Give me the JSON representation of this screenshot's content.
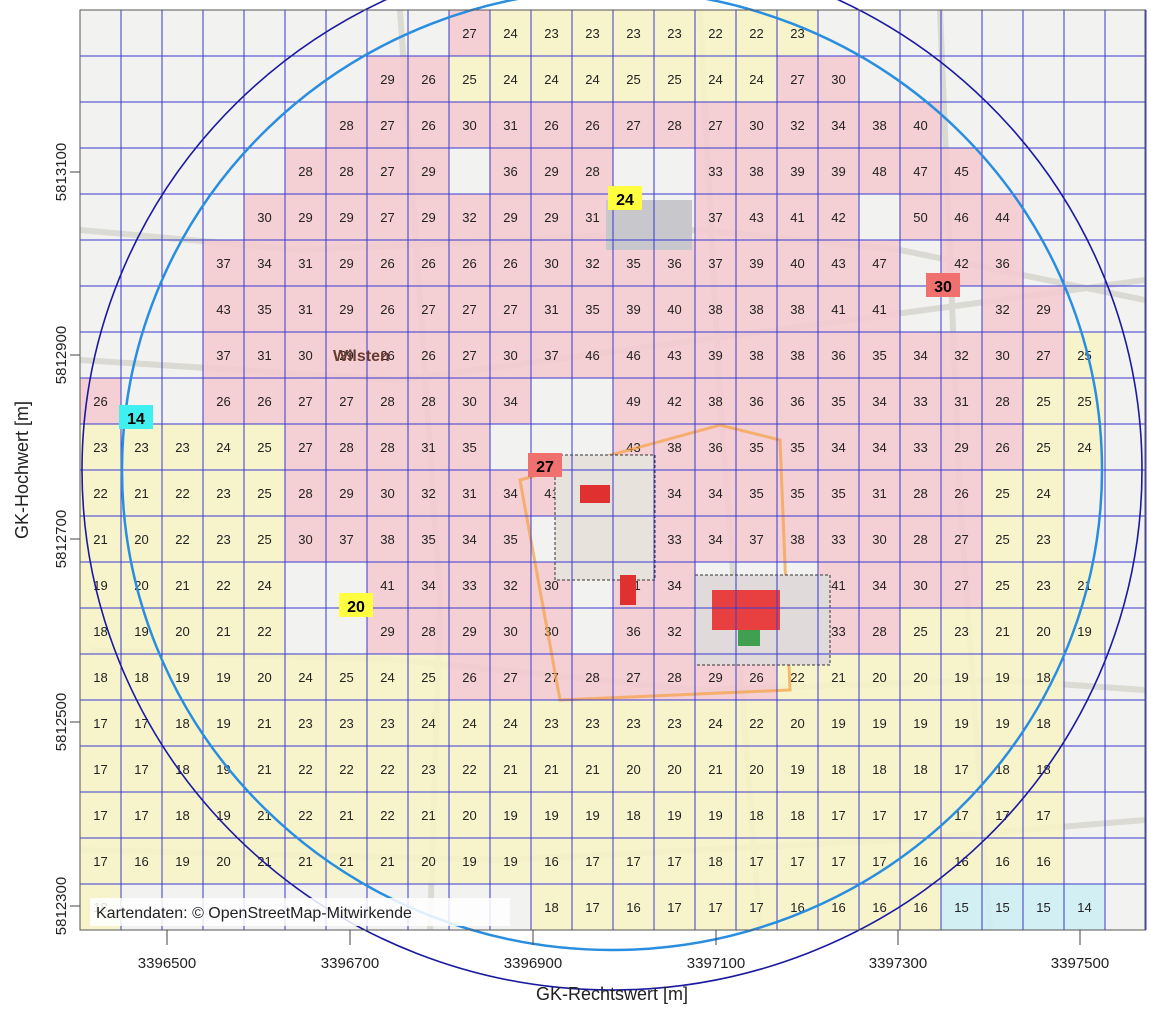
{
  "map": {
    "x_axis_title": "GK-Rechtswert [m]",
    "y_axis_title": "GK-Hochwert [m]",
    "x_ticks": [
      "3396500",
      "3396700",
      "3396900",
      "3397100",
      "3397300",
      "3397500"
    ],
    "y_ticks": [
      "5813100",
      "5812900",
      "5812700",
      "5812500",
      "5812300"
    ],
    "attribution": "Kartendaten: © OpenStreetMap-Mitwirkende",
    "place_label": "Wilsten",
    "colors": {
      "red_cell": "#f4c9cf",
      "yellow_cell": "#f8f5c6",
      "cyan_cell": "#cdeff5",
      "grid_line": "#3a3ad0",
      "circle_light": "#2a8ee0",
      "circle_dark": "#1a1aa0",
      "source_zone": "#f5a040"
    },
    "grid_rows": [
      [
        "",
        "",
        "",
        "",
        "",
        "",
        "",
        "",
        "",
        "27",
        "24",
        "23",
        "23",
        "23",
        "23",
        "22",
        "22",
        "23",
        "",
        "",
        "",
        "",
        "",
        "",
        "",
        ""
      ],
      [
        "",
        "",
        "",
        "",
        "",
        "",
        "",
        "29",
        "26",
        "25",
        "24",
        "24",
        "24",
        "25",
        "25",
        "24",
        "24",
        "27",
        "30",
        "",
        "",
        "",
        "",
        "",
        "",
        ""
      ],
      [
        "",
        "",
        "",
        "",
        "",
        "",
        "28",
        "27",
        "26",
        "30",
        "31",
        "26",
        "26",
        "27",
        "28",
        "27",
        "30",
        "32",
        "34",
        "38",
        "40",
        "",
        "",
        "",
        "",
        ""
      ],
      [
        "",
        "",
        "",
        "",
        "",
        "28",
        "28",
        "27",
        "29",
        "",
        "36",
        "29",
        "28",
        "",
        "",
        "33",
        "38",
        "39",
        "39",
        "48",
        "47",
        "45",
        "",
        "",
        "",
        ""
      ],
      [
        "",
        "",
        "",
        "",
        "30",
        "29",
        "29",
        "27",
        "29",
        "32",
        "29",
        "29",
        "31",
        "",
        "",
        "37",
        "43",
        "41",
        "42",
        "",
        "50",
        "46",
        "44",
        "",
        "",
        ""
      ],
      [
        "",
        "",
        "",
        "37",
        "34",
        "31",
        "29",
        "26",
        "26",
        "26",
        "26",
        "30",
        "32",
        "35",
        "36",
        "37",
        "39",
        "40",
        "43",
        "47",
        "",
        "42",
        "36",
        "",
        "",
        ""
      ],
      [
        "",
        "",
        "",
        "43",
        "35",
        "31",
        "29",
        "26",
        "27",
        "27",
        "27",
        "31",
        "35",
        "39",
        "40",
        "38",
        "38",
        "38",
        "41",
        "41",
        "",
        "",
        "32",
        "29",
        "",
        ""
      ],
      [
        "",
        "",
        "",
        "37",
        "31",
        "30",
        "29",
        "26",
        "26",
        "27",
        "30",
        "37",
        "46",
        "46",
        "43",
        "39",
        "38",
        "38",
        "36",
        "35",
        "34",
        "32",
        "30",
        "27",
        "25",
        ""
      ],
      [
        "26",
        "",
        "",
        "26",
        "26",
        "27",
        "27",
        "28",
        "28",
        "30",
        "34",
        "",
        "",
        "49",
        "42",
        "38",
        "36",
        "36",
        "35",
        "34",
        "33",
        "31",
        "28",
        "25",
        "25",
        ""
      ],
      [
        "23",
        "23",
        "23",
        "24",
        "25",
        "27",
        "28",
        "28",
        "31",
        "35",
        "",
        "",
        "",
        "43",
        "38",
        "36",
        "35",
        "35",
        "34",
        "34",
        "33",
        "29",
        "26",
        "25",
        "24",
        ""
      ],
      [
        "22",
        "21",
        "22",
        "23",
        "25",
        "28",
        "29",
        "30",
        "32",
        "31",
        "34",
        "41",
        "",
        "37",
        "34",
        "34",
        "35",
        "35",
        "35",
        "31",
        "28",
        "26",
        "25",
        "24",
        "",
        ""
      ],
      [
        "21",
        "20",
        "22",
        "23",
        "25",
        "30",
        "37",
        "38",
        "35",
        "34",
        "35",
        "",
        "",
        "36",
        "33",
        "34",
        "37",
        "38",
        "33",
        "30",
        "28",
        "27",
        "25",
        "23",
        "",
        ""
      ],
      [
        "19",
        "20",
        "21",
        "22",
        "24",
        "",
        "",
        "41",
        "34",
        "33",
        "32",
        "30",
        "",
        "41",
        "34",
        "",
        "",
        "",
        "41",
        "34",
        "30",
        "27",
        "25",
        "23",
        "21",
        ""
      ],
      [
        "18",
        "19",
        "20",
        "21",
        "22",
        "",
        "",
        "29",
        "28",
        "29",
        "30",
        "30",
        "",
        "36",
        "32",
        "",
        "",
        "",
        "33",
        "28",
        "25",
        "23",
        "21",
        "20",
        "19",
        ""
      ],
      [
        "18",
        "18",
        "19",
        "19",
        "20",
        "24",
        "25",
        "24",
        "25",
        "26",
        "27",
        "27",
        "28",
        "27",
        "28",
        "29",
        "26",
        "22",
        "21",
        "20",
        "20",
        "19",
        "19",
        "18",
        "",
        ""
      ],
      [
        "17",
        "17",
        "18",
        "19",
        "21",
        "23",
        "23",
        "23",
        "24",
        "24",
        "24",
        "23",
        "23",
        "23",
        "23",
        "24",
        "22",
        "20",
        "19",
        "19",
        "19",
        "19",
        "19",
        "18",
        "",
        ""
      ],
      [
        "17",
        "17",
        "18",
        "19",
        "21",
        "22",
        "22",
        "22",
        "23",
        "22",
        "21",
        "21",
        "21",
        "20",
        "20",
        "21",
        "20",
        "19",
        "18",
        "18",
        "18",
        "17",
        "18",
        "18",
        "",
        ""
      ],
      [
        "17",
        "17",
        "18",
        "19",
        "21",
        "22",
        "21",
        "22",
        "21",
        "20",
        "19",
        "19",
        "19",
        "18",
        "19",
        "19",
        "18",
        "18",
        "17",
        "17",
        "17",
        "17",
        "17",
        "17",
        "",
        ""
      ],
      [
        "17",
        "16",
        "19",
        "20",
        "21",
        "21",
        "21",
        "21",
        "20",
        "19",
        "19",
        "16",
        "17",
        "17",
        "17",
        "18",
        "17",
        "17",
        "17",
        "17",
        "16",
        "16",
        "16",
        "16",
        "",
        ""
      ],
      [
        "18",
        "",
        "",
        "",
        "",
        "",
        "",
        "",
        "",
        "",
        "",
        "18",
        "17",
        "16",
        "17",
        "17",
        "17",
        "16",
        "16",
        "16",
        "16",
        "15",
        "15",
        "15",
        "14",
        ""
      ]
    ],
    "markers": [
      {
        "label": "24",
        "kind": "yellow"
      },
      {
        "label": "30",
        "kind": "red"
      },
      {
        "label": "14",
        "kind": "cyan"
      },
      {
        "label": "27",
        "kind": "red"
      },
      {
        "label": "20",
        "kind": "yellow"
      }
    ]
  }
}
